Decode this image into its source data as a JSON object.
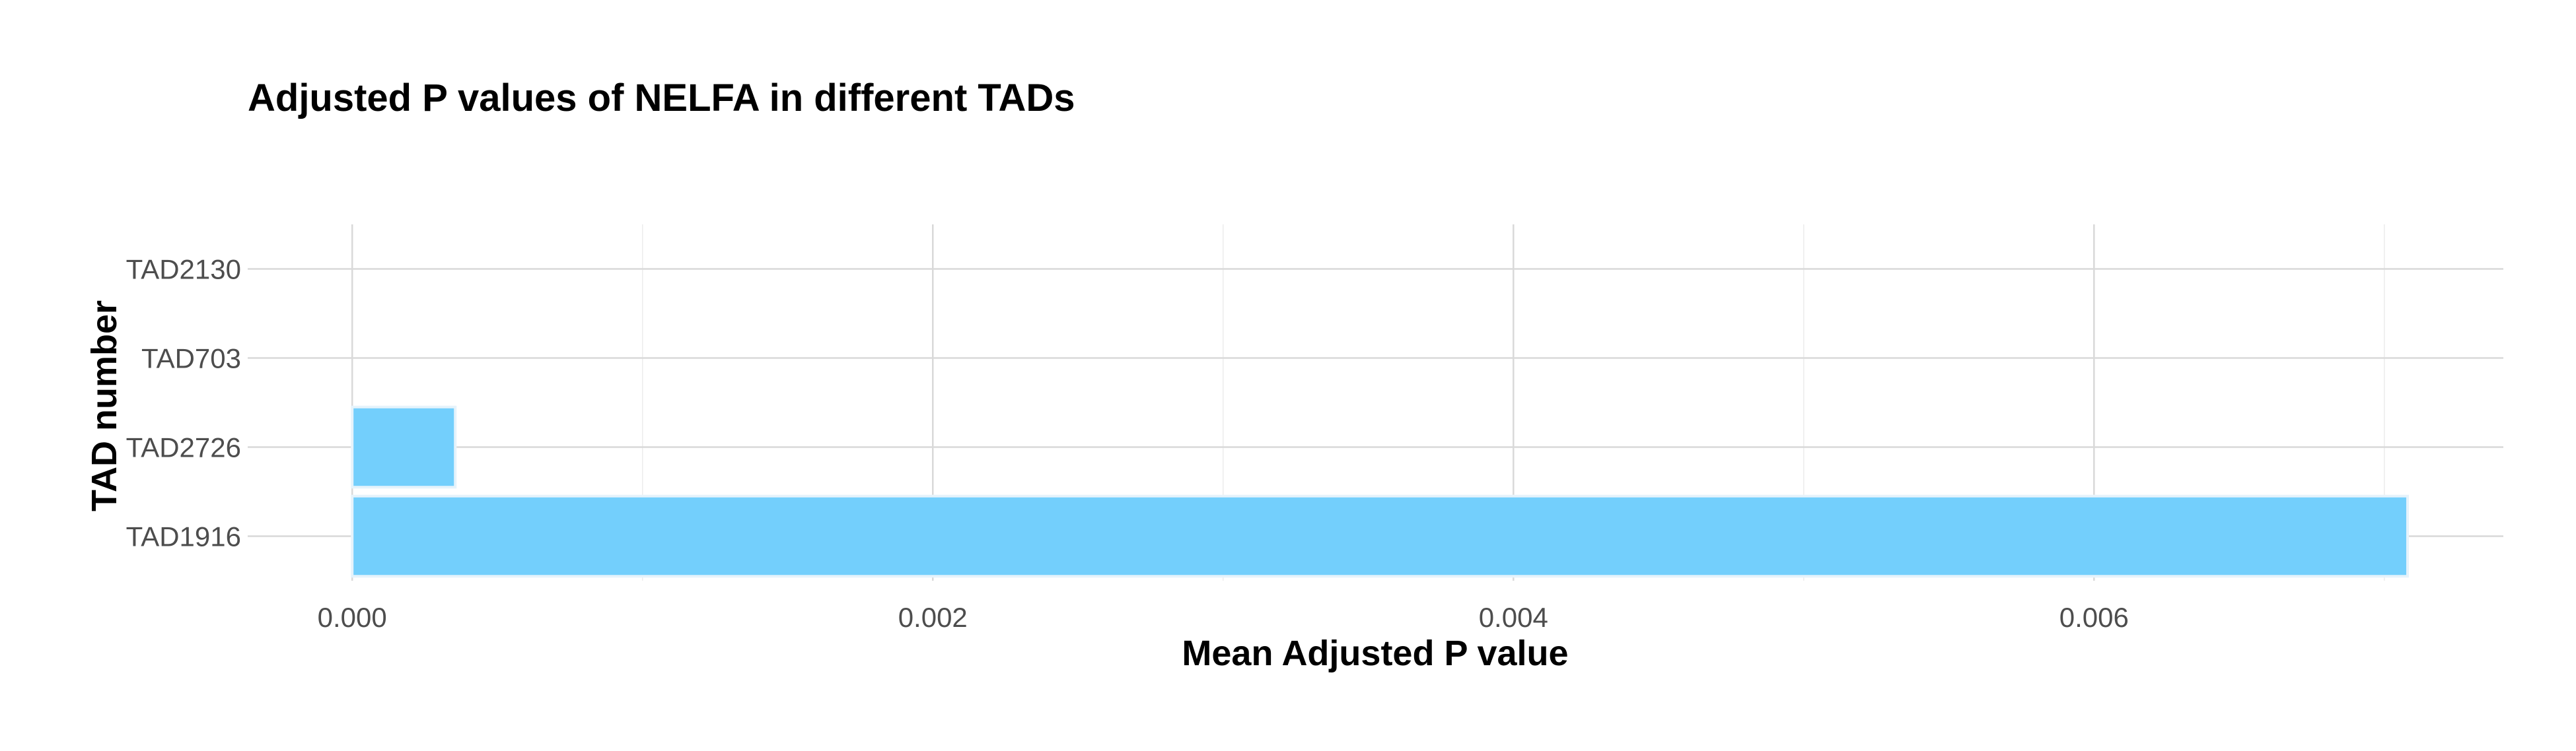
{
  "chart_data": {
    "type": "bar",
    "orientation": "horizontal",
    "title": "Adjusted P values of NELFA in different TADs",
    "xlabel": "Mean Adjusted P value",
    "ylabel": "TAD number",
    "categories": [
      "TAD1916",
      "TAD2726",
      "TAD703",
      "TAD2130"
    ],
    "values": [
      0.00708,
      0.000355,
      0.0,
      0.0
    ],
    "xlim": [
      -0.00036,
      0.00741
    ],
    "x_ticks": [
      0.0,
      0.002,
      0.004,
      0.006
    ],
    "x_tick_labels": [
      "0.000",
      "0.002",
      "0.004",
      "0.006"
    ],
    "x_minor_ticks": [
      0.001,
      0.003,
      0.005,
      0.007
    ],
    "grid": true,
    "legend": "none",
    "bar_color": "#73CFFC",
    "bar_edge_color": "#e6f3fb"
  }
}
